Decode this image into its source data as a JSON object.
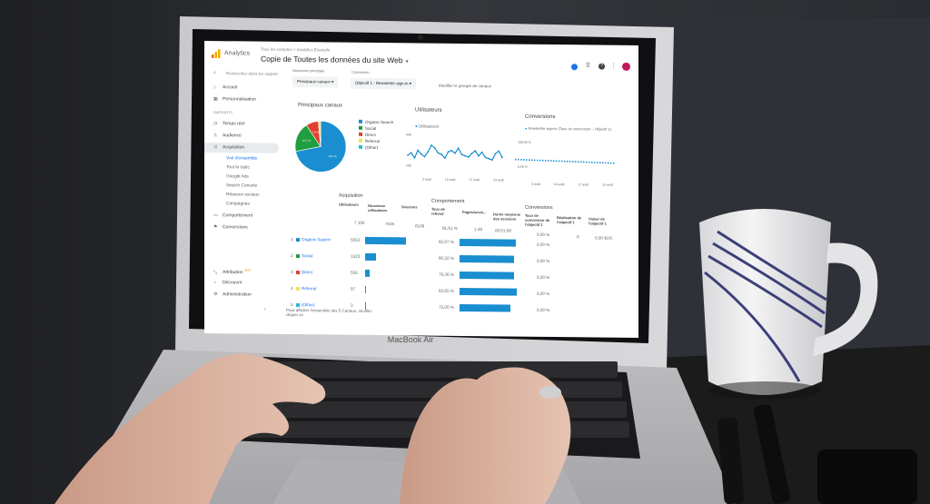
{
  "app": {
    "name": "Analytics",
    "breadcrumb": "Tous les comptes > Analytics Example",
    "view_title": "Copie de Toutes les données du site Web",
    "search_placeholder": "Rechercher dans les rapport"
  },
  "sidebar": {
    "section_label": "RAPPORTS",
    "items": [
      {
        "label": "Accueil",
        "icon": "home-icon"
      },
      {
        "label": "Personnalisation",
        "icon": "customization-icon"
      },
      {
        "label": "Temps réel",
        "icon": "clock-icon"
      },
      {
        "label": "Audience",
        "icon": "person-icon"
      },
      {
        "label": "Acquisition",
        "icon": "acquisition-icon"
      },
      {
        "label": "Comportement",
        "icon": "behavior-icon"
      },
      {
        "label": "Conversions",
        "icon": "flag-icon"
      }
    ],
    "sub_items": [
      "Vue d'ensemble",
      "Tout le trafic",
      "Google Ads",
      "Search Console",
      "Réseaux sociaux",
      "Campagnes"
    ],
    "bottom_items": [
      {
        "label": "Attribution",
        "badge": "BETA",
        "icon": "attribution-icon"
      },
      {
        "label": "Découvrir",
        "icon": "lightbulb-icon"
      },
      {
        "label": "Administration",
        "icon": "gear-icon"
      }
    ]
  },
  "filters": {
    "dimension_label": "Dimension principale :",
    "dimension_value": "Principaux canaux",
    "conversion_label": "Conversion :",
    "conversion_value": "Objectif 1 : Newsletter sign-in",
    "edit_link": "Modifier le groupe de canaux"
  },
  "pie_card": {
    "title": "Principaux canaux",
    "slices": [
      {
        "label": "Organic Search",
        "value": 70.5,
        "color": "#1a8ed0"
      },
      {
        "label": "Social",
        "value": 18.5,
        "color": "#1e9e3e"
      },
      {
        "label": "Direct",
        "value": 7.8,
        "color": "#e0412e"
      },
      {
        "label": "Referral",
        "value": 1.4,
        "color": "#f4e04d"
      },
      {
        "label": "(Other)",
        "value": 0.04,
        "color": "#2bb9d9"
      }
    ],
    "slice_labels": [
      "70,5 %",
      "18,5 %",
      "7,8 %"
    ]
  },
  "users_card": {
    "title": "Utilisateurs",
    "legend": "Utilisateurs",
    "y_ticks": [
      "400",
      "200"
    ],
    "x_ticks": [
      "3 août",
      "10 août",
      "17 août",
      "24 août"
    ],
    "values": [
      260,
      280,
      240,
      300,
      270,
      250,
      290,
      340,
      320,
      280,
      270,
      240,
      290,
      300,
      280,
      320,
      270,
      260,
      250,
      280,
      300,
      260,
      290,
      250,
      240,
      230,
      280,
      300,
      250
    ]
  },
  "conv_card": {
    "title": "Conversions",
    "legend": "Newsletter sign-in (Taux de conversion – Objectif 1)",
    "y_ticks": [
      "100,00 %",
      "0,00 %"
    ],
    "x_ticks": [
      "3 août",
      "10 août",
      "17 août",
      "24 août"
    ]
  },
  "acquisition": {
    "title": "Acquisition",
    "headers": [
      "Utilisateurs",
      "Nouveaux utilisateurs",
      "Sessions"
    ],
    "totals": [
      "7 166",
      "7045",
      "8108"
    ],
    "rows": [
      {
        "rank": "1",
        "channel": "Organic Search",
        "color": "#1a8ed0",
        "users": 5053
      },
      {
        "rank": "2",
        "channel": "Social",
        "color": "#1e9e3e",
        "users": 1323
      },
      {
        "rank": "3",
        "channel": "Direct",
        "color": "#e0412e",
        "users": 556
      },
      {
        "rank": "4",
        "channel": "Referral",
        "color": "#f4e04d",
        "users": 97
      },
      {
        "rank": "5",
        "channel": "(Other)",
        "color": "#2bb9d9",
        "users": 3
      }
    ]
  },
  "behavior": {
    "title": "Comportement",
    "headers": [
      "Taux de rebond",
      "Pages/sessi...",
      "Durée moyenne des sessions"
    ],
    "totals": [
      "81,61 %",
      "1,39",
      "00:01:08"
    ],
    "rows": [
      {
        "label": "82,87 %",
        "value": 82.87
      },
      {
        "label": "80,32 %",
        "value": 80.32
      },
      {
        "label": "79,36 %",
        "value": 79.36
      },
      {
        "label": "83,65 %",
        "value": 83.65
      },
      {
        "label": "75,00 %",
        "value": 75.0
      }
    ]
  },
  "conversions": {
    "title": "Conversions",
    "headers": [
      "Taux de conversion de l'objectif 1",
      "Réalisation de l'objectif 1",
      "Valeur de l'objectif 1"
    ],
    "totals": [
      "0,00 %",
      "0",
      "0,00 $US"
    ],
    "rows": [
      "0,00 %",
      "0,00 %",
      "0,00 %",
      "0,00 %",
      "0,00 %"
    ]
  },
  "footer_note": "Pour afficher l'ensemble des 5 Canaux, veuillez cliquer ici",
  "laptop_label": "MacBook Air",
  "colors": {
    "accent": "#1a8ed0",
    "logo_orange": "#f9ab00",
    "logo_dark": "#e37400"
  }
}
